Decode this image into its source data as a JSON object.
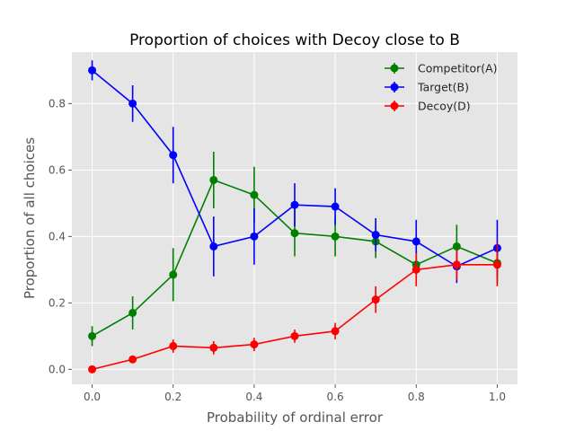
{
  "chart_data": {
    "type": "line",
    "title": "Proportion of choices with Decoy close to B",
    "xlabel": "Probability of ordinal error",
    "ylabel": "Proportion of all choices",
    "xlim": [
      -0.05,
      1.05
    ],
    "ylim": [
      -0.045,
      0.955
    ],
    "xticks": [
      0.0,
      0.2,
      0.4,
      0.6,
      0.8,
      1.0
    ],
    "xtick_labels": [
      "0.0",
      "0.2",
      "0.4",
      "0.6",
      "0.8",
      "1.0"
    ],
    "yticks": [
      0.0,
      0.2,
      0.4,
      0.6,
      0.8
    ],
    "ytick_labels": [
      "0.0",
      "0.2",
      "0.4",
      "0.6",
      "0.8"
    ],
    "grid": true,
    "legend_position": "top-right",
    "x": [
      0.0,
      0.1,
      0.2,
      0.3,
      0.4,
      0.5,
      0.6,
      0.7,
      0.8,
      0.9,
      1.0
    ],
    "series": [
      {
        "name": "Competitor(A)",
        "color": "#008000",
        "values": [
          0.1,
          0.17,
          0.285,
          0.57,
          0.525,
          0.41,
          0.4,
          0.385,
          0.315,
          0.37,
          0.32
        ],
        "errors": [
          0.03,
          0.05,
          0.08,
          0.085,
          0.085,
          0.07,
          0.06,
          0.05,
          0.04,
          0.065,
          0.06
        ]
      },
      {
        "name": "Target(B)",
        "color": "#0000ff",
        "values": [
          0.9,
          0.8,
          0.645,
          0.37,
          0.4,
          0.495,
          0.49,
          0.405,
          0.385,
          0.31,
          0.365
        ],
        "errors": [
          0.03,
          0.055,
          0.085,
          0.09,
          0.085,
          0.065,
          0.055,
          0.05,
          0.065,
          0.05,
          0.085
        ]
      },
      {
        "name": "Decoy(D)",
        "color": "#ff0000",
        "values": [
          0.0,
          0.03,
          0.07,
          0.065,
          0.075,
          0.1,
          0.115,
          0.21,
          0.3,
          0.315,
          0.315
        ],
        "errors": [
          0.005,
          0.01,
          0.02,
          0.02,
          0.02,
          0.02,
          0.025,
          0.04,
          0.05,
          0.045,
          0.065
        ]
      }
    ]
  }
}
